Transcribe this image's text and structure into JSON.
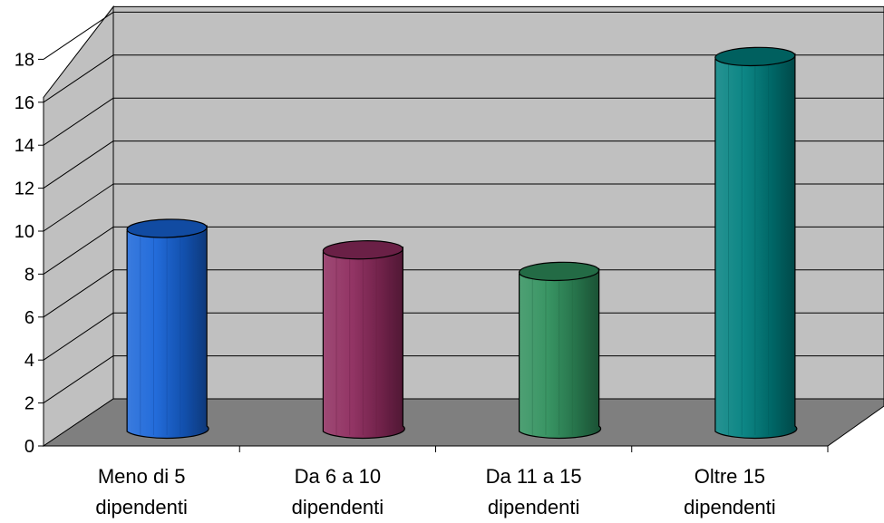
{
  "chart_data": {
    "type": "bar",
    "style": "3d-cylinder",
    "categories": [
      [
        "Meno di 5",
        "dipendenti"
      ],
      [
        "Da 6 a 10",
        "dipendenti"
      ],
      [
        "Da 11 a 15",
        "dipendenti"
      ],
      [
        "Oltre 15",
        "dipendenti"
      ]
    ],
    "values": [
      10,
      9,
      8,
      18
    ],
    "ylim": [
      0,
      18
    ],
    "yticks": [
      0,
      2,
      4,
      6,
      8,
      10,
      12,
      14,
      16,
      18
    ],
    "grid": true,
    "legend": "none",
    "colors": {
      "bars": [
        "#1764d8",
        "#8d2a5d",
        "#2f8f5c",
        "#00807f"
      ],
      "wall": "#c0c0c0",
      "floor": "#7f7f7f",
      "gridline": "#000000"
    }
  }
}
